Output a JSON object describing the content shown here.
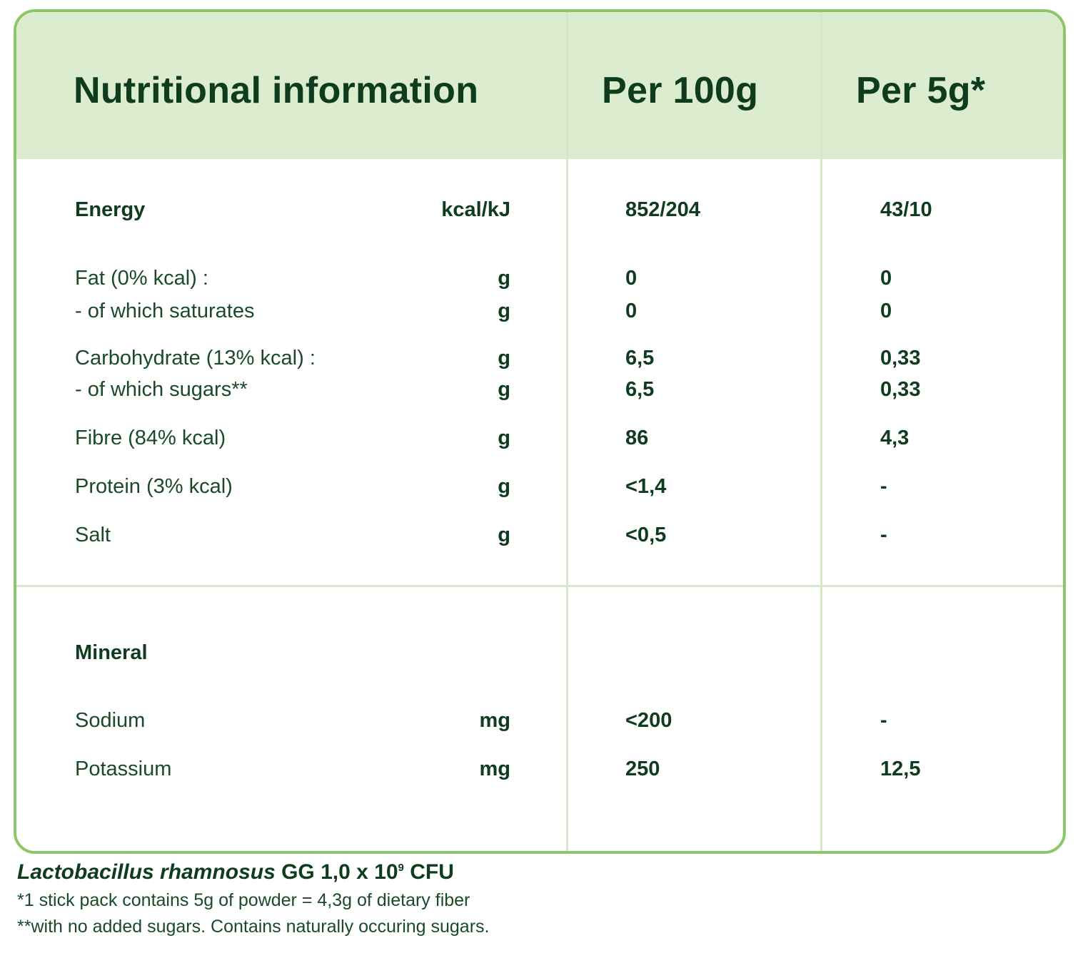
{
  "colors": {
    "text": "#0f3b1f",
    "border": "#8cc66b",
    "header_bg": "#dcedcf",
    "divider": "#d6e8c9"
  },
  "header": {
    "title": "Nutritional information",
    "col1": "Per 100g",
    "col2": "Per 5g*"
  },
  "rows": [
    {
      "label": "Energy",
      "unit": "kcal/kJ",
      "per100": "852/204",
      "per5": "43/10"
    },
    {
      "label": "Fat (0% kcal) :",
      "unit": "g",
      "per100": "0",
      "per5": "0"
    },
    {
      "label": "- of which saturates",
      "unit": "g",
      "per100": "0",
      "per5": "0"
    },
    {
      "label": "Carbohydrate (13% kcal) :",
      "unit": "g",
      "per100": "6,5",
      "per5": "0,33"
    },
    {
      "label": "- of which sugars**",
      "unit": "g",
      "per100": "6,5",
      "per5": "0,33"
    },
    {
      "label": "Fibre (84% kcal)",
      "unit": "g",
      "per100": "86",
      "per5": "4,3"
    },
    {
      "label": "Protein (3% kcal)",
      "unit": "g",
      "per100": "<1,4",
      "per5": "-"
    },
    {
      "label": "Salt",
      "unit": "g",
      "per100": "<0,5",
      "per5": "-"
    }
  ],
  "mineral": {
    "heading": "Mineral",
    "rows": [
      {
        "label": "Sodium",
        "unit": "mg",
        "per100": "<200",
        "per5": "-"
      },
      {
        "label": "Potassium",
        "unit": "mg",
        "per100": "250",
        "per5": "12,5"
      }
    ]
  },
  "footer": {
    "strain_italic": "Lactobacillus rhamnosus",
    "strain_rest": " GG 1,0 x 10",
    "strain_exp": "9",
    "strain_unit": " CFU",
    "note1": "*1 stick pack contains 5g of powder = 4,3g of dietary fiber",
    "note2": "**with no added sugars. Contains naturally occuring sugars."
  }
}
